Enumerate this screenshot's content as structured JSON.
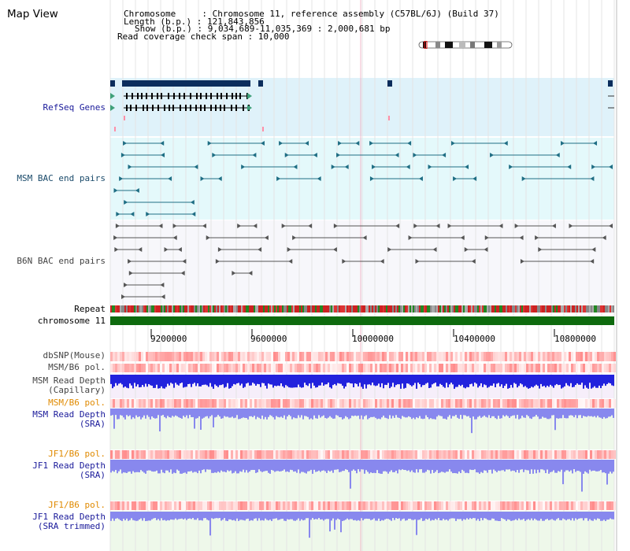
{
  "view_title": "Map View",
  "info": {
    "chromosome_line": "Chromosome     : Chromosome 11, reference assembly (C57BL/6J) (Build 37)",
    "length_line": "Length (b.p.) : 121,843,856",
    "show_line": "Show (b.p.) : 9,034,689-11,035,369 : 2,000,681 bp",
    "coverage_line": "Read coverage check span : 10,000"
  },
  "tracks": {
    "refseq": "RefSeq Genes",
    "msm_bac": "MSM BAC end pairs",
    "b6n_bac": "B6N BAC end pairs",
    "repeat": "Repeat",
    "chromosome": "chromosome 11",
    "dbsnp": "dbSNP(Mouse)",
    "msm_b6_pol_1": "MSM/B6 pol.",
    "msm_depth_cap_1": "MSM Read Depth",
    "msm_depth_cap_2": "(Capillary)",
    "msm_b6_pol_2": "MSM/B6 pol.",
    "msm_depth_sra_1": "MSM Read Depth",
    "msm_depth_sra_2": "(SRA)",
    "jf1_b6_pol_1": "JF1/B6 pol.",
    "jf1_depth_sra_1": "JF1 Read Depth",
    "jf1_depth_sra_2": "(SRA)",
    "jf1_b6_pol_2": "JF1/B6 pol.",
    "jf1_depth_trim_1": "JF1 Read Depth",
    "jf1_depth_trim_2": "(SRA trimmed)"
  },
  "axis": {
    "ticks": [
      "9200000",
      "9600000",
      "10000000",
      "10400000",
      "10800000"
    ]
  },
  "colors": {
    "refseq_bg": "#dff2fa",
    "msm_bg": "#e4f9fb",
    "b6n_bg": "#f7f7fb",
    "chromosome_bar": "#0e6a0e",
    "gene_dark": "#0b2d5c",
    "msm_line": "#1f6e84",
    "b6n_line": "#555555",
    "depth_capillary": "#2222dd",
    "depth_sra": "#8888ee",
    "label_blue": "#1a1a9a",
    "label_orange": "#e08a00"
  }
}
